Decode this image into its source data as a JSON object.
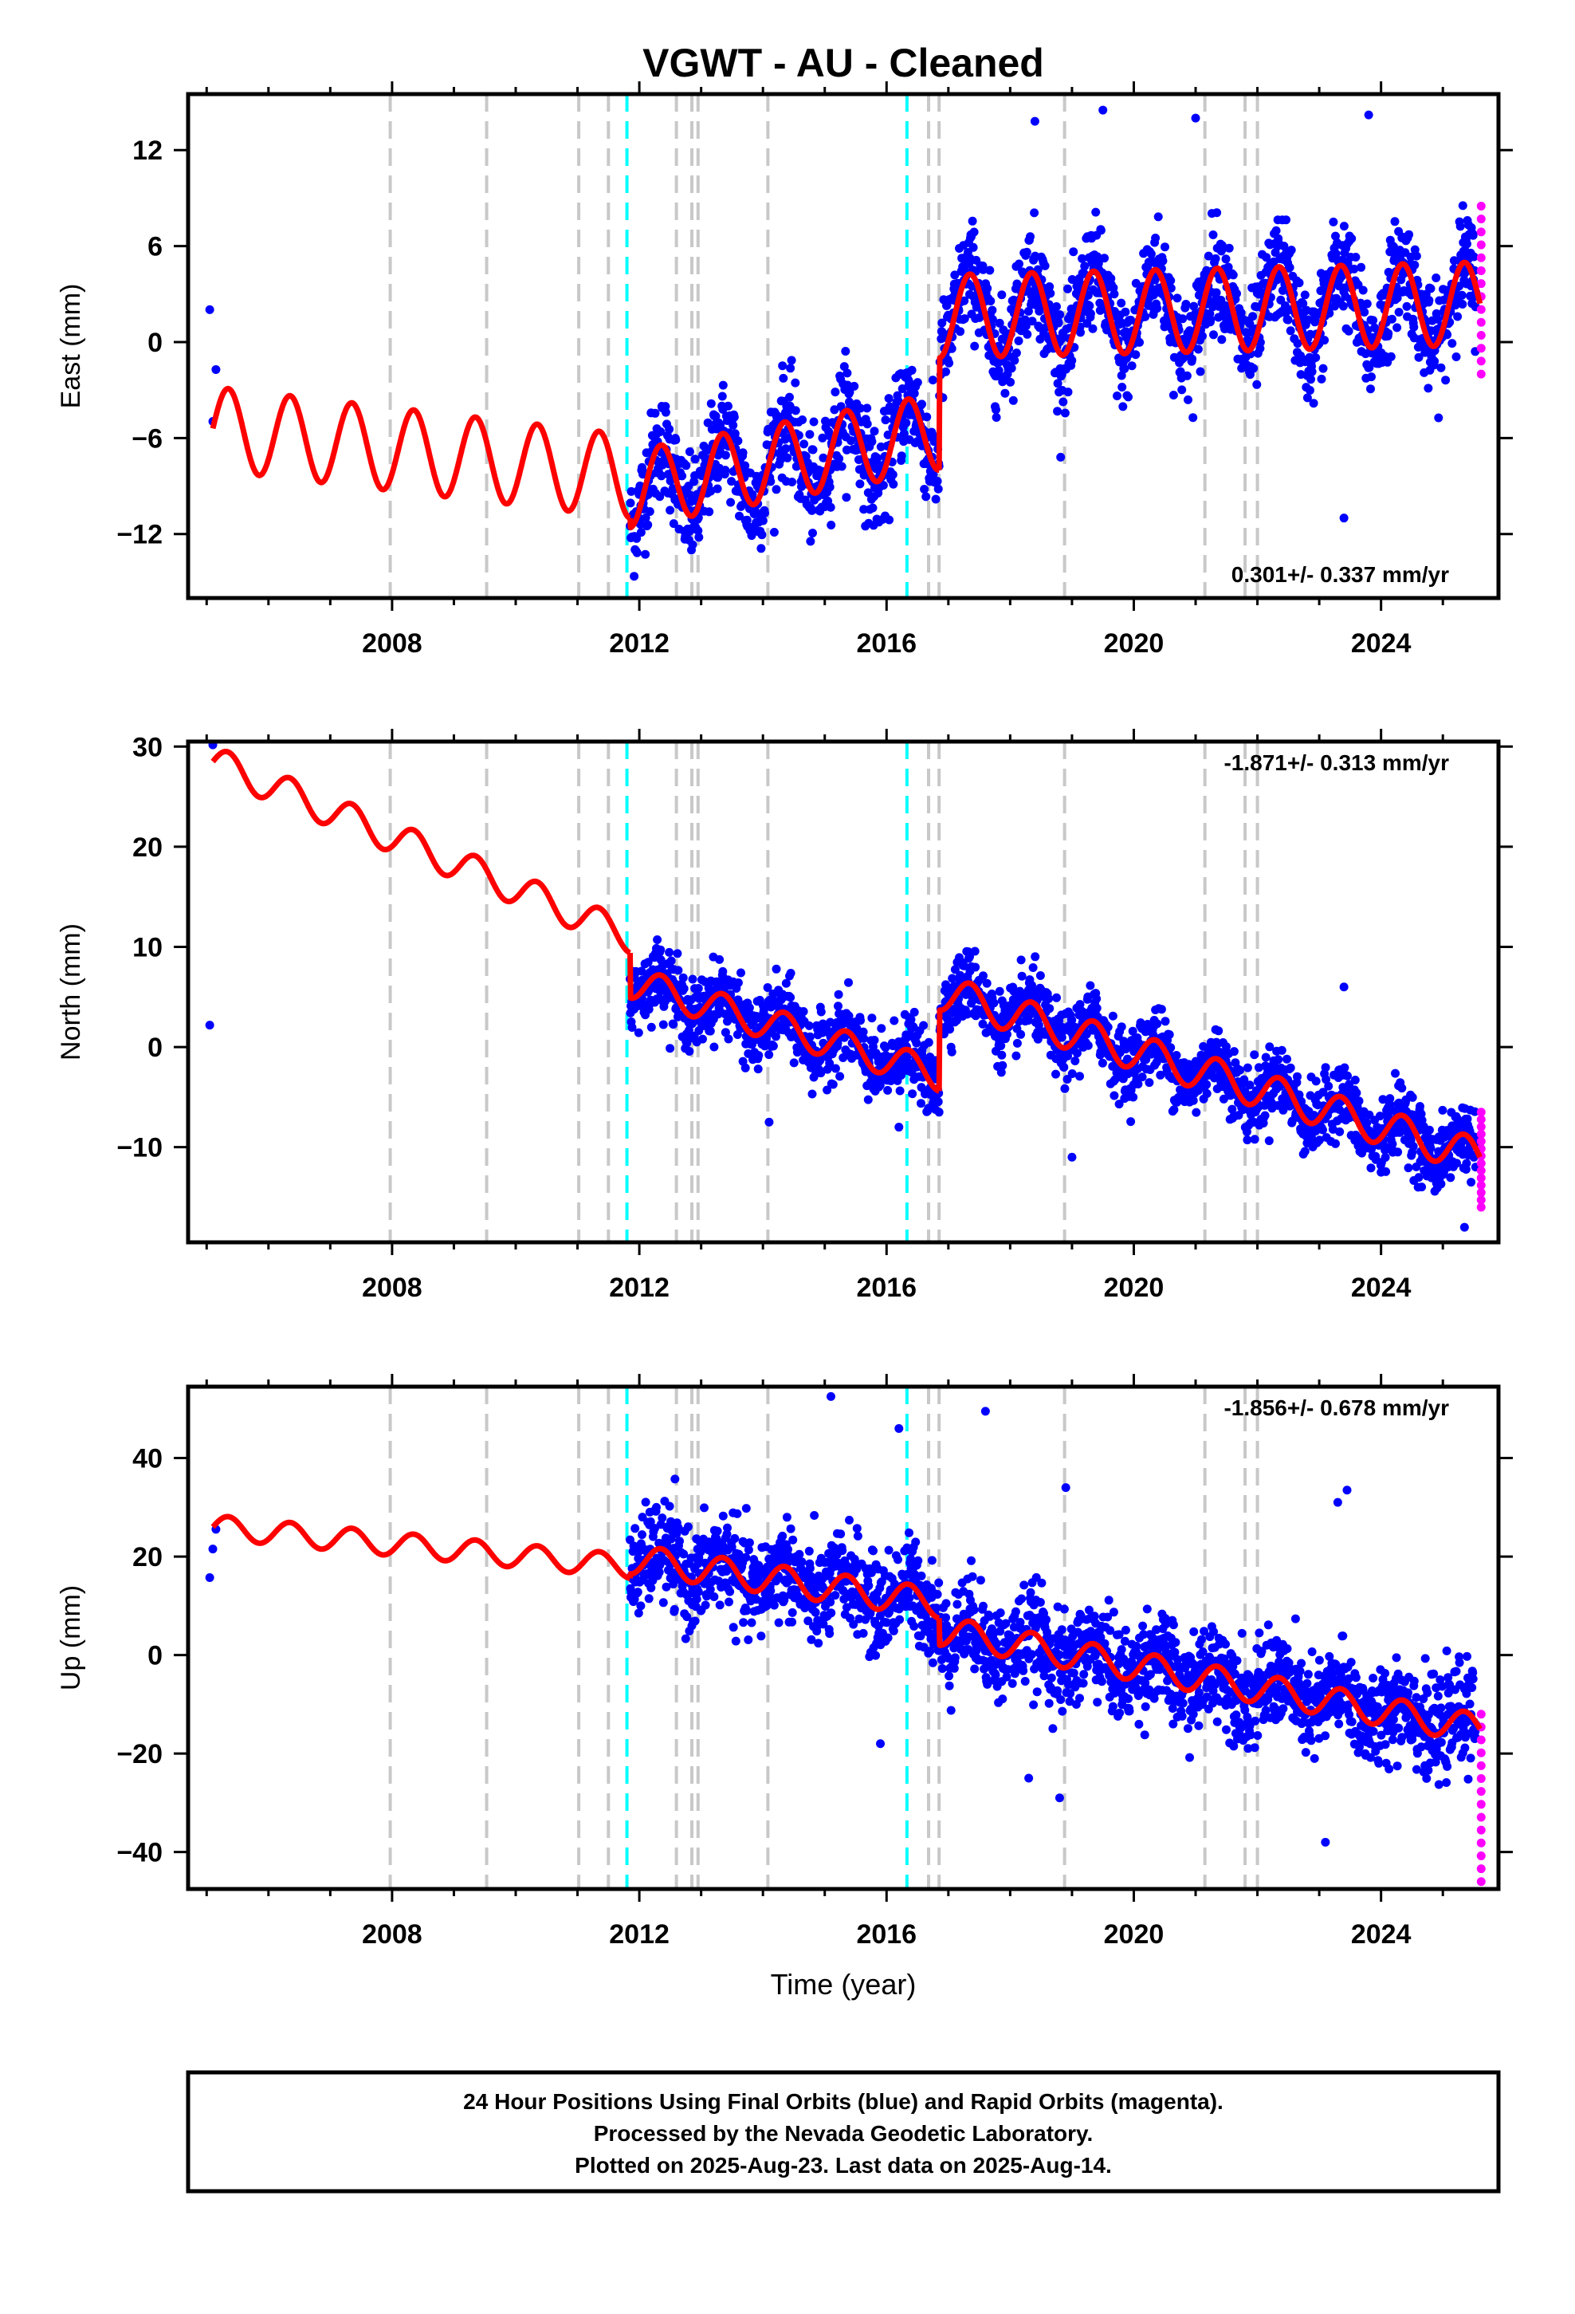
{
  "title": "VGWT  - AU - Cleaned",
  "footer_lines": [
    "24 Hour Positions Using Final Orbits (blue) and Rapid Orbits (magenta).",
    "Processed by the Nevada Geodetic Laboratory.",
    "Plotted on 2025-Aug-23. Last data on 2025-Aug-14."
  ],
  "colors": {
    "final_points": "#0000ff",
    "rapid_points": "#ff00ff",
    "model_line": "#ff0000",
    "equipment_change": "#c8c8c8",
    "earthquake_event": "#00ffff"
  },
  "chart_data": [
    {
      "type": "scatter",
      "panel": "east",
      "ylabel": "East (mm)",
      "xlabel": "",
      "xlim": [
        2004.7,
        2025.9
      ],
      "ylim": [
        -16,
        15.5
      ],
      "yticks": [
        -12,
        -6,
        0,
        6,
        12
      ],
      "xticks": [
        2008,
        2012,
        2016,
        2020,
        2024
      ],
      "rate_text": "0.301+/- 0.337 mm/yr",
      "rate_position": "bottom-right",
      "trend_segments": [
        {
          "t0": 2005.1,
          "t1": 2011.85,
          "v0": -5.4,
          "v1": -8.4,
          "amp": 2.6
        },
        {
          "t0": 2011.85,
          "t1": 2016.85,
          "v0": -9.2,
          "v1": -5.6,
          "amp": 2.4
        },
        {
          "t0": 2016.85,
          "t1": 2025.6,
          "v0": 1.6,
          "v1": 2.4,
          "amp": 2.6
        }
      ],
      "scatter_sigma": 1.6,
      "outliers": [
        [
          2023.4,
          -11
        ],
        [
          2019.5,
          14.5
        ],
        [
          2023.8,
          14.2
        ],
        [
          2018.4,
          13.8
        ],
        [
          2021.0,
          14
        ]
      ],
      "rapid_range": [
        -2,
        8.5
      ]
    },
    {
      "type": "scatter",
      "panel": "north",
      "ylabel": "North (mm)",
      "xlabel": "",
      "xlim": [
        2004.7,
        2025.9
      ],
      "ylim": [
        -19.5,
        30.5
      ],
      "yticks": [
        -10,
        0,
        10,
        20,
        30
      ],
      "xticks": [
        2008,
        2012,
        2016,
        2020,
        2024
      ],
      "rate_text": "-1.871+/- 0.313 mm/yr",
      "rate_position": "top-right",
      "trend_segments": [
        {
          "t0": 2005.1,
          "t1": 2011.85,
          "v0": 28.5,
          "v1": 11.0,
          "amp": 1.6
        },
        {
          "t0": 2011.85,
          "t1": 2016.85,
          "v0": 6.5,
          "v1": -2.8,
          "amp": 1.6
        },
        {
          "t0": 2016.85,
          "t1": 2025.6,
          "v0": 5.5,
          "v1": -11.0,
          "amp": 1.8
        }
      ],
      "scatter_sigma": 1.7,
      "outliers": [
        [
          2024.0,
          -12.5
        ],
        [
          2024.6,
          -14
        ],
        [
          2025.35,
          -18
        ],
        [
          2019.0,
          -11
        ],
        [
          2014.1,
          -7.5
        ],
        [
          2016.2,
          -8
        ],
        [
          2023.4,
          6
        ]
      ],
      "rapid_range": [
        -16,
        -6.5
      ]
    },
    {
      "type": "scatter",
      "panel": "up",
      "ylabel": "Up (mm)",
      "xlabel": "Time (year)",
      "xlim": [
        2004.7,
        2025.9
      ],
      "ylim": [
        -47.5,
        54.5
      ],
      "yticks": [
        -40,
        -20,
        0,
        20,
        40
      ],
      "xticks": [
        2008,
        2012,
        2016,
        2020,
        2024
      ],
      "rate_text": "-1.856+/- 0.678 mm/yr",
      "rate_position": "top-right",
      "trend_segments": [
        {
          "t0": 2005.1,
          "t1": 2011.85,
          "v0": 26.0,
          "v1": 18.0,
          "amp": 2.4
        },
        {
          "t0": 2011.85,
          "t1": 2016.85,
          "v0": 19.5,
          "v1": 10.5,
          "amp": 3.0
        },
        {
          "t0": 2016.85,
          "t1": 2025.6,
          "v0": 5.0,
          "v1": -15.0,
          "amp": 3.0
        }
      ],
      "scatter_sigma": 4.8,
      "outliers": [
        [
          2015.1,
          52.5
        ],
        [
          2016.2,
          46
        ],
        [
          2017.6,
          49.5
        ],
        [
          2018.9,
          34
        ],
        [
          2023.3,
          31
        ],
        [
          2023.45,
          33.5
        ],
        [
          2015.9,
          -18
        ],
        [
          2018.3,
          -25
        ],
        [
          2018.8,
          -29
        ],
        [
          2023.1,
          -38
        ]
      ],
      "rapid_range": [
        -46,
        -12
      ]
    }
  ],
  "events": {
    "equipment": [
      2007.97,
      2009.53,
      2011.02,
      2011.5,
      2012.6,
      2012.85,
      2012.95,
      2014.08,
      2016.68,
      2016.85,
      2018.88,
      2021.15,
      2021.8,
      2022.0
    ],
    "earthquake": [
      2011.8,
      2016.33
    ]
  },
  "first_epochs": [
    2005.05,
    2005.1,
    2005.15
  ],
  "last_epoch": 2025.62
}
